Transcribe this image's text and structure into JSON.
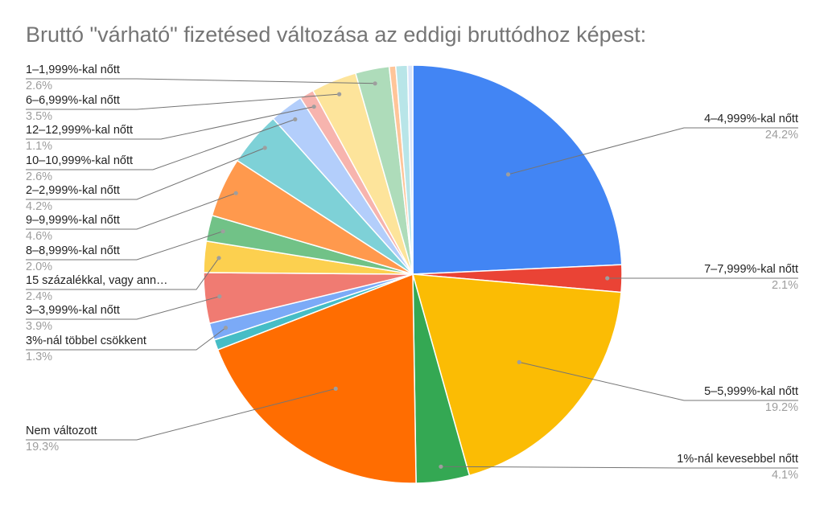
{
  "chart_data": {
    "type": "pie",
    "title": "Bruttó \"várható\" fizetésed változása az eddigi bruttódhoz képest:",
    "slices": [
      {
        "label": "4–4,999%-kal nőtt",
        "percent_label": "24.2%",
        "value": 24.2,
        "color": "#4285f4"
      },
      {
        "label": "7–7,999%-kal nőtt",
        "percent_label": "2.1%",
        "value": 2.1,
        "color": "#ea4335"
      },
      {
        "label": "5–5,999%-kal nőtt",
        "percent_label": "19.2%",
        "value": 19.2,
        "color": "#fbbc04"
      },
      {
        "label": "1%-nál kevesebbel nőtt",
        "percent_label": "4.1%",
        "value": 4.1,
        "color": "#34a853"
      },
      {
        "label": "Nem változott",
        "percent_label": "19.3%",
        "value": 19.3,
        "color": "#ff6d01"
      },
      {
        "label": "",
        "percent_label": "",
        "value": 0.8,
        "color": "#46bdc6"
      },
      {
        "label": "3%-nál többel csökkent",
        "percent_label": "1.3%",
        "value": 1.3,
        "color": "#7baaf7"
      },
      {
        "label": "3–3,999%-kal nőtt",
        "percent_label": "3.9%",
        "value": 3.9,
        "color": "#f07b72"
      },
      {
        "label": "15 százalékkal, vagy ann…",
        "percent_label": "2.4%",
        "value": 2.4,
        "color": "#fcd04f"
      },
      {
        "label": "8–8,999%-kal nőtt",
        "percent_label": "2.0%",
        "value": 2.0,
        "color": "#71c287"
      },
      {
        "label": "9–9,999%-kal nőtt",
        "percent_label": "4.6%",
        "value": 4.6,
        "color": "#ff994d"
      },
      {
        "label": "2–2,999%-kal nőtt",
        "percent_label": "4.2%",
        "value": 4.2,
        "color": "#7ed1d7"
      },
      {
        "label": "10–10,999%-kal nőtt",
        "percent_label": "2.6%",
        "value": 2.6,
        "color": "#b3cefb"
      },
      {
        "label": "12–12,999%-kal nőtt",
        "percent_label": "1.1%",
        "value": 1.1,
        "color": "#f7b4ae"
      },
      {
        "label": "6–6,999%-kal nőtt",
        "percent_label": "3.5%",
        "value": 3.5,
        "color": "#fde49b"
      },
      {
        "label": "1–1,999%-kal nőtt",
        "percent_label": "2.6%",
        "value": 2.6,
        "color": "#aedcba"
      },
      {
        "label": "",
        "percent_label": "",
        "value": 0.5,
        "color": "#ffc599"
      },
      {
        "label": "",
        "percent_label": "",
        "value": 0.9,
        "color": "#b8e5e8"
      },
      {
        "label": "",
        "percent_label": "",
        "value": 0.4,
        "color": "#d9e5fb"
      }
    ],
    "legend": "none",
    "start_angle": "12 o'clock",
    "direction": "clockwise"
  }
}
